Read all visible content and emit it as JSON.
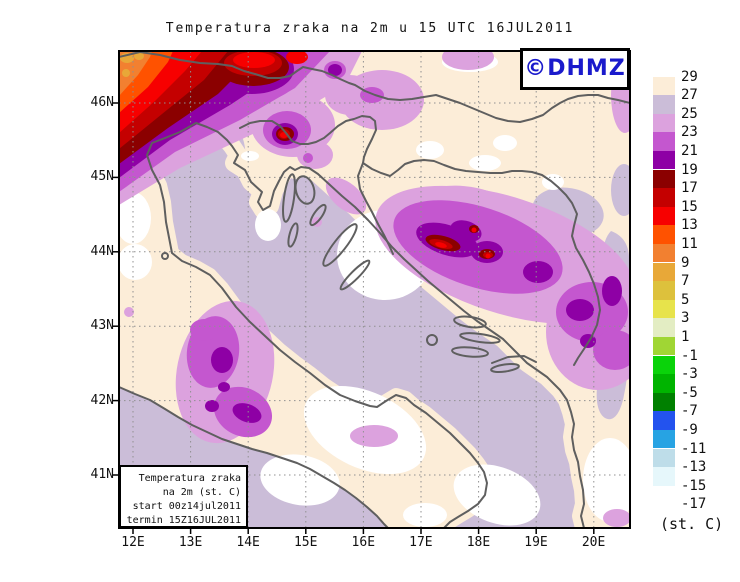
{
  "title": "Temperatura zraka na 2m u 15 UTC 16JUL2011",
  "logo": {
    "text": "©DHMZ",
    "color": "#1a1acc"
  },
  "legend_box": {
    "lines": [
      "Temperatura zraka",
      "na 2m (st. C)",
      "start 00z14jul2011",
      "termin 15Z16JUL2011"
    ]
  },
  "axes": {
    "x_ticks": [
      "12E",
      "13E",
      "14E",
      "15E",
      "16E",
      "17E",
      "18E",
      "19E",
      "20E"
    ],
    "y_ticks": [
      "46N",
      "45N",
      "44N",
      "43N",
      "42N",
      "41N"
    ]
  },
  "colorbar": {
    "unit_label": "(st. C)",
    "tick_labels": [
      "29",
      "27",
      "25",
      "23",
      "21",
      "19",
      "17",
      "15",
      "13",
      "11",
      "9",
      "7",
      "5",
      "3",
      "1",
      "-1",
      "-3",
      "-5",
      "-7",
      "-9",
      "-11",
      "-13",
      "-15",
      "-17"
    ],
    "colors": [
      "#fcedd8",
      "#cbbdd8",
      "#dca2de",
      "#c457cf",
      "#8e00a5",
      "#8b0000",
      "#c40000",
      "#f70000",
      "#ff5200",
      "#f28030",
      "#e8a838",
      "#ddc13c",
      "#e7e34b",
      "#e3edc3",
      "#a0d634",
      "#0ad30a",
      "#00b400",
      "#008000",
      "#2353ee",
      "#27a3e3",
      "#bedde9",
      "#e6f7fb",
      "#ffffff"
    ]
  },
  "map_colors": {
    "hot_land": "#fcedd8",
    "sea": "#cbbdd8",
    "coastline": "#5f5f5f",
    "grid": "#909090"
  }
}
